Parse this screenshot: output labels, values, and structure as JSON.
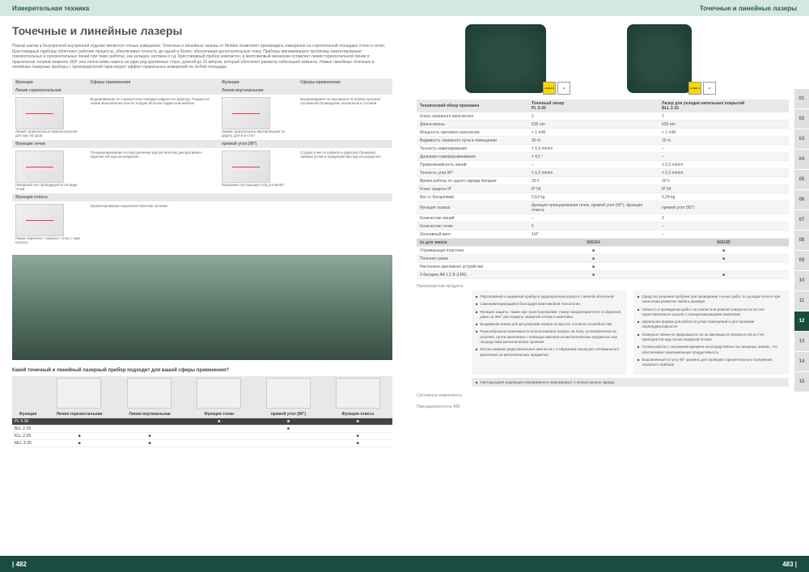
{
  "header_left": "Измерительная техника",
  "header_right": "Точечные и линейные лазеры",
  "title": "Точечные и линейные лазеры",
  "intro": "Перым шагом в безупречной внутренней отделке являются точные измерения. Точечные и линейные лазеры от Metabo позволяют производить измерения на строительной площадке точно и четко. Крестовидные приборы облегчают рабочие процессы, обеспечивая точность до одной и более, обеспечивая дополнительную точку. Приборы минимизируют проблемы ориентирования горизонтальных и горизонтальных линий при таких работах, как укладка, натяжка и т.д. Крестовидный прибор компактен, а маятниковый механизм оставляет линии горизонтальной линии в практически готовом моменте 360° или легкосъёма навеса на один ряд крепёжных строк, длиной до 15 метров, который обеспечит разметку небольшой комнаты. Новые линейные точечные и линейные лазерные приборы с производителей гарантирует эффект правильных измерений на любой площадке.",
  "func_headers": [
    "Функция",
    "Сферы применения",
    "Функция",
    "Сферы применения"
  ],
  "sections": {
    "s1_left": "Линия горизонтальная",
    "s1_right": "Линия вертикальная",
    "s2_left": "Функция точки",
    "s2_right": "прямой угол (90°)",
    "s3_left": "Функция отвеса"
  },
  "func_rows": {
    "r1a": "Линия горизонтальн горизонтальная для нас на уров",
    "r1b": "Выравнивание по горизонтали\nУкладка кафеля по фартуку\nПокрасочн линии\nВыполнение или по кладке\nМонтаж подвесной мебели",
    "r1c": "Линия горизонтальн вертикальная по фарту, для в и стал",
    "r1d": "Выравнивание по вертикали\nУстройка кухонно/ половиной\nПроведение оказального стоянии",
    "r2a": "Лазерный луч проецируется на виде точки",
    "r2b": "Позиционирование по внутреннему кругом\nМонтаж декоративных изделия\nНа курсов разделил",
    "r2c": "Лазерный луч\nвыходят под углом 90°",
    "r2d": "Создан в ми по кафеля и фартука\nПроверка прямых углов и продукция\nМы курсов разделил",
    "r3a": "Лазер перенесут горизонт точку с нам полосы",
    "r3b": "Ориентировании покупателя\nМонтаж основан"
  },
  "question": "Какой точечный и линейный лазерный прибор подходит для вашей сферы применения?",
  "app_headers": [
    "Функция",
    "Линия горизонтальная",
    "Линия вертикальная",
    "Функция точки",
    "прямой угол (90°)",
    "Функция отвеса"
  ],
  "app_rows": [
    {
      "name": "PL 5-30",
      "vals": [
        "",
        "",
        "■",
        "■",
        "■"
      ],
      "dark": true
    },
    {
      "name": "BLL 2-15",
      "vals": [
        "",
        "",
        "",
        "■",
        ""
      ]
    },
    {
      "name": "KLL 2-20",
      "vals": [
        "■",
        "■",
        "",
        "",
        "■"
      ]
    },
    {
      "name": "MLL 3-20",
      "vals": [
        "■",
        "■",
        "",
        "",
        "■"
      ]
    }
  ],
  "page_left": "| 482",
  "page_right": "483 |",
  "tech_label": "Технический обзор приложен",
  "prod_headers": [
    "Точечный лазер\nPL 5-30",
    "Лазер для укладки напольных покрытий\nBLL 2-15"
  ],
  "laser_text": "LASER 2",
  "spec_rows": [
    {
      "k": "Класс лазерного излучателя",
      "v1": "2",
      "v2": "2"
    },
    {
      "k": "Длина волны",
      "v1": "635 nm",
      "v2": "635 nm"
    },
    {
      "k": "Мощность светового излучения",
      "v1": "< 1 mW",
      "v2": "< 1 mW"
    },
    {
      "k": "Видимость лазерного луча в помещении",
      "v1": "30 m",
      "v2": "15 m"
    },
    {
      "k": "Точность нивелирования",
      "v1": "± 0,3 mm/m",
      "v2": "–"
    },
    {
      "k": "Диапазон самовыравнивания",
      "v1": "± 4,5 °",
      "v2": "–"
    },
    {
      "k": "Прямолинейность линий",
      "v1": "–",
      "v2": "± 0,3 mm/m"
    },
    {
      "k": "Точность угла 90°",
      "v1": "± 0,2 mm/m",
      "v2": "± 0,3 mm/m"
    },
    {
      "k": "Время работы от одного заряда батареи",
      "v1": "20 h",
      "v2": "20 h"
    },
    {
      "k": "Класс защиты IP",
      "v1": "IP 54",
      "v2": "IP 54"
    },
    {
      "k": "Вес (с батареями)",
      "v1": "0,53 kg",
      "v2": "0,34 kg"
    },
    {
      "k": "Функция лазера",
      "v1": "функция проецирования точек, прямой угол (90°), функция отвеса",
      "v2": "прямой угол (90°)"
    },
    {
      "k": "Количество линий",
      "v1": "–",
      "v2": "2"
    },
    {
      "k": "Количество точек",
      "v1": "5",
      "v2": "–"
    },
    {
      "k": "Штативный винт",
      "v1": "1/4″",
      "v2": "–"
    }
  ],
  "order_label": "№ для заказа",
  "order_vals": [
    "606164",
    "606165"
  ],
  "scope_rows": [
    {
      "k": "Отражающая пластина",
      "v1": "■",
      "v2": "■"
    },
    {
      "k": "Поясная сумка",
      "v1": "■",
      "v2": "■"
    },
    {
      "k": "Настенное крепежное устройство",
      "v1": "■",
      "v2": ""
    },
    {
      "k": "3 батареи AA 1,5 В (LR6)",
      "v1": "■",
      "v2": "■"
    }
  ],
  "advantages_label": "Преимущества продукта",
  "feat_left": [
    "Портативный и надежный прибор в ударопрочном корпусе с мягкой оболочкой",
    "Самонивелирующийся благодаря маятниковой технологии",
    "Функция защиты, также при транспортировке: лазер поворачивается в U-образной раме на 360° для защиты лазерной оптики и маятника",
    "Выдвижная ножка для регулировки лазера по высоте согласно потребностям",
    "Разнообразные возможности использования лазера: на полу, установленном на штативе, путем крепления с помощью магнита на металлических предметах или посредством металлических пронизм",
    "Использование редкоземельных магнитов с V-образным пазом для оптимального крепления на металлических предметах"
  ],
  "feat_right": [
    "Средство решения проблем при проведении точных работ по укладке пола и при нанесении разметки любого размера",
    "Гибкость в проведении работ на плитке или ровной поверхности за счет переставляемого цоколя с позиционирующими захватами",
    "Идеальная форма для работы в углах помещений и для проверки перпендикулярности",
    "Лазерные линии не прерываются из-за имеющихся неровностей за счет приподнятой над полом лазерной оптики",
    "Точная работа с экономией времени непосредственно на лазерных линиях, что обеспечивает максимальную продуктивность",
    "Выровненный по углу 90° уровень для проверки горизонтального положения лазерного прибора"
  ],
  "note": "Светодиодная индикация своевременно информирует о низком уровне заряда",
  "acc_label": "Системные компоненты",
  "acc_text": "Принадлежности ▸ 485",
  "tabs": [
    "01",
    "02",
    "03",
    "04",
    "05",
    "06",
    "07",
    "08",
    "09",
    "10",
    "11",
    "12",
    "13",
    "14",
    "15"
  ],
  "active_tab": "12"
}
